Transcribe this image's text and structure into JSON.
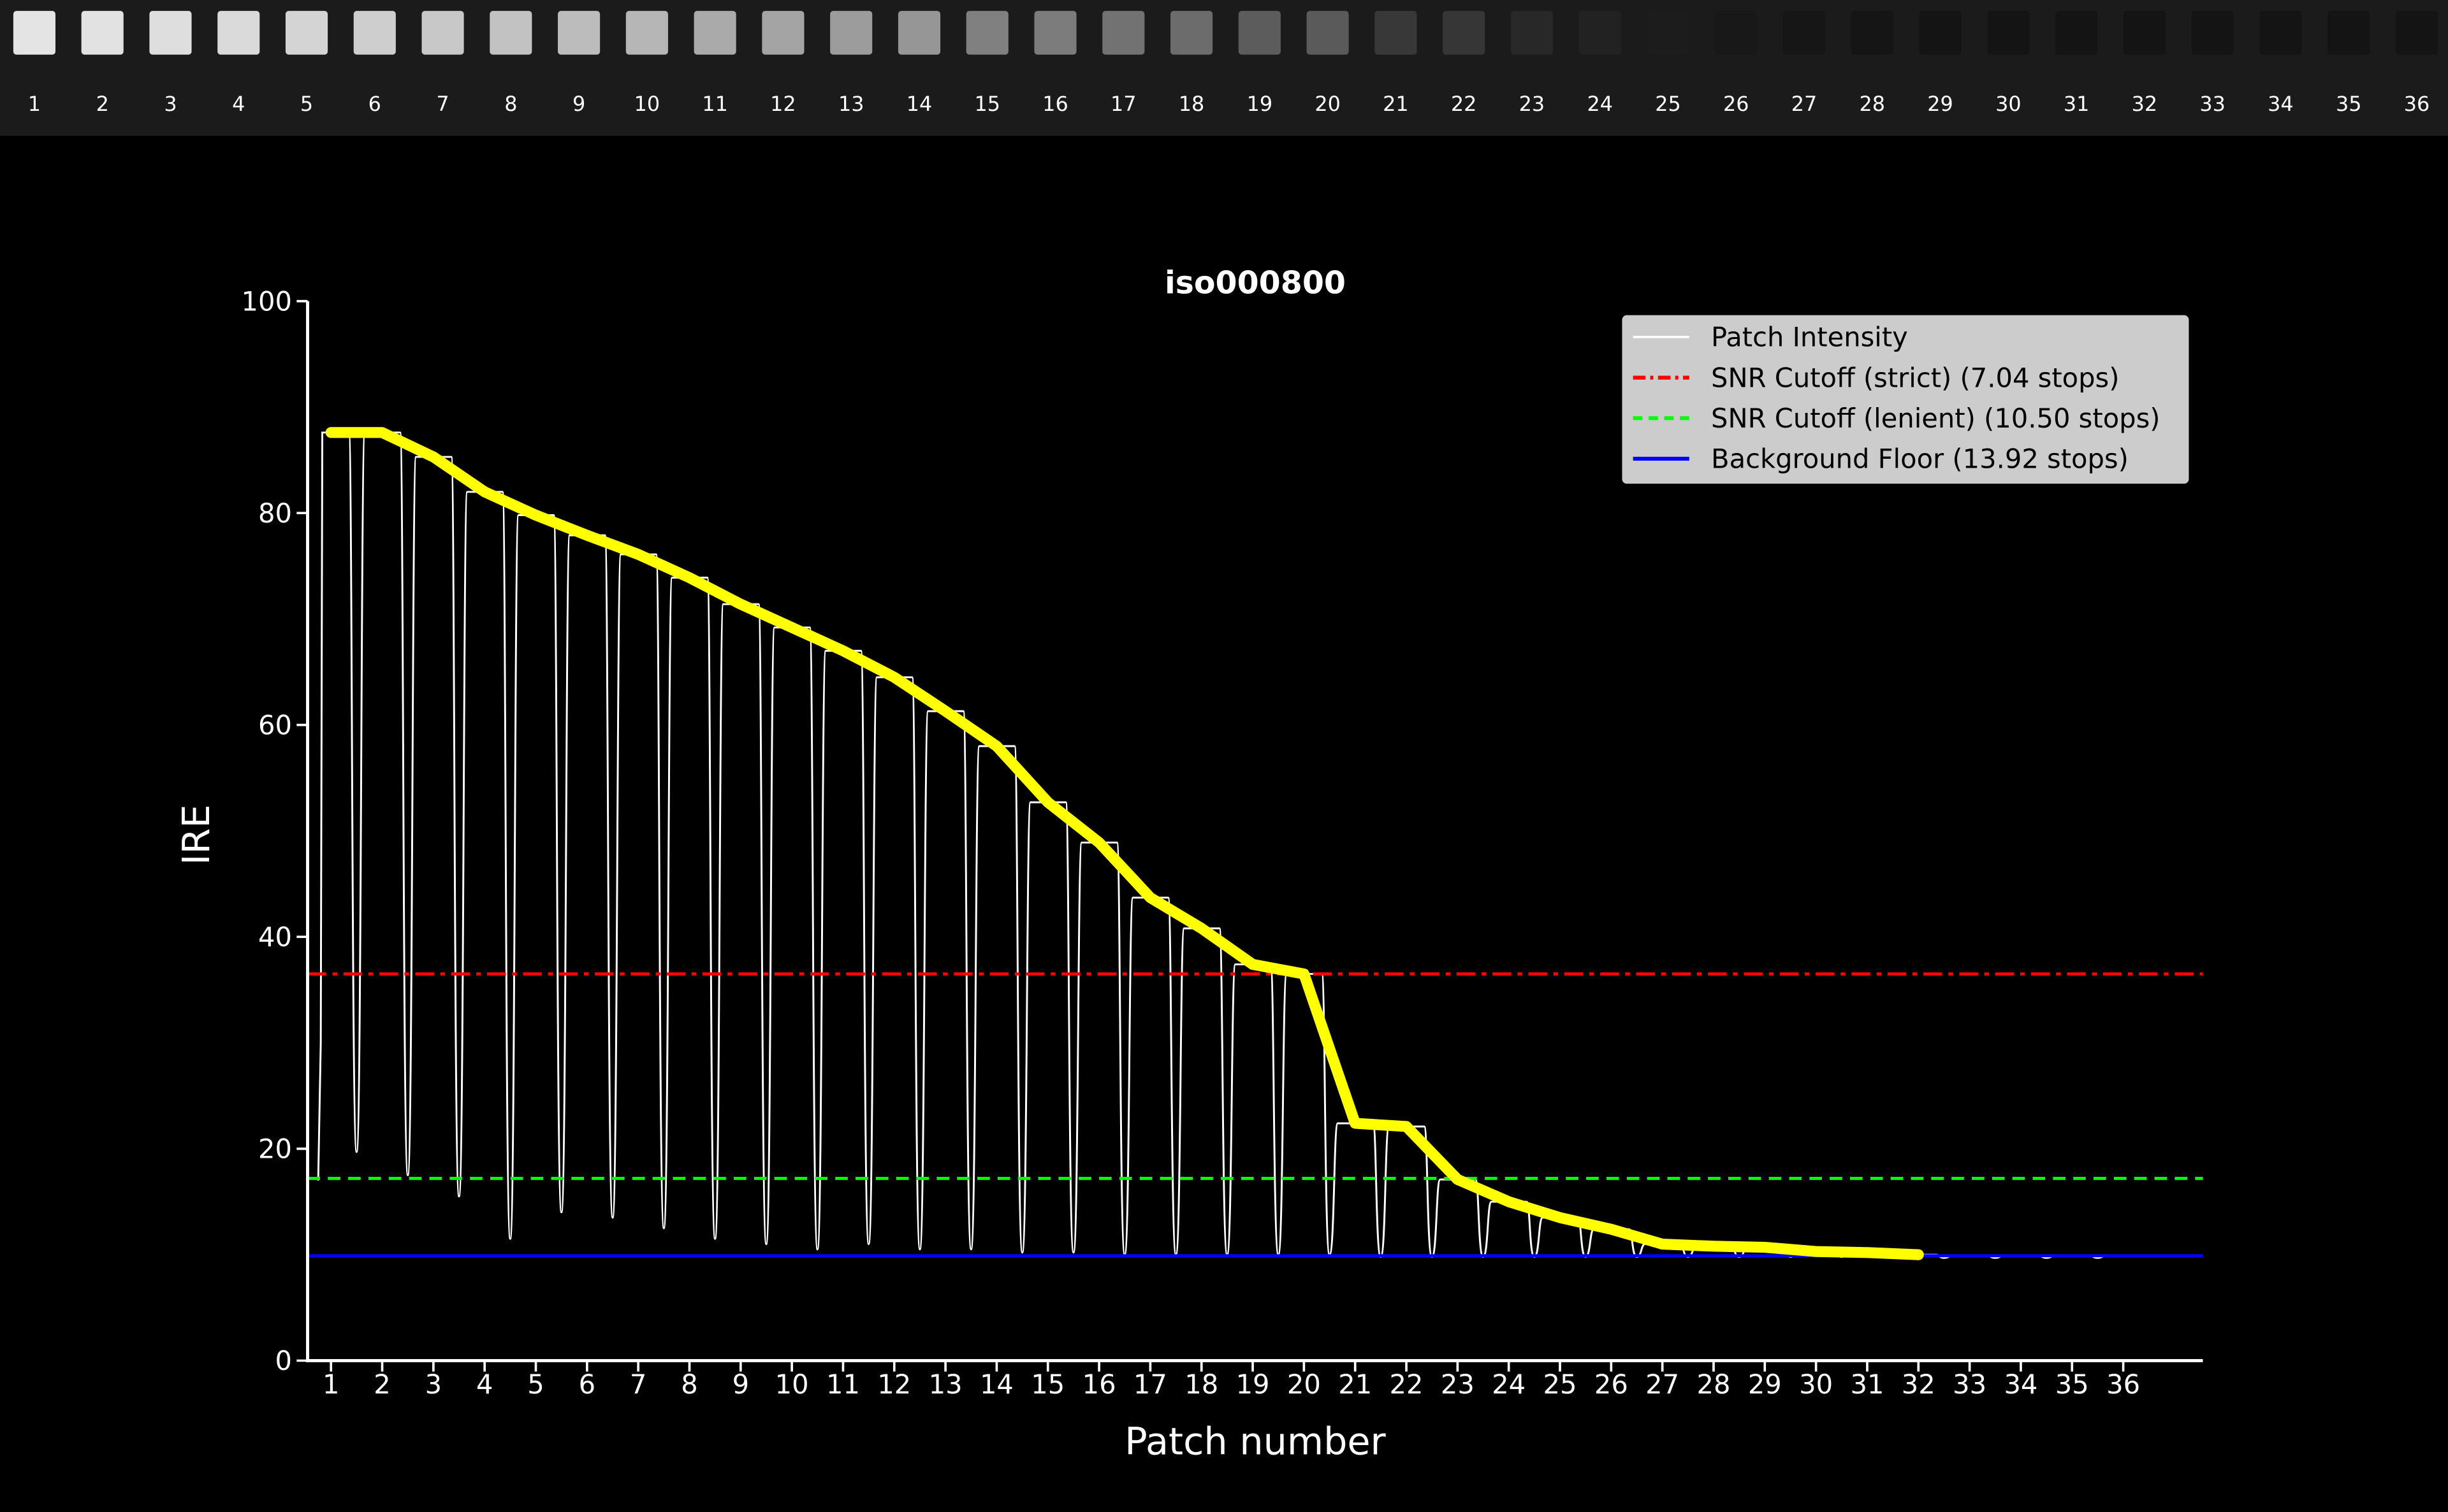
{
  "strip": {
    "labels": [
      "1",
      "2",
      "3",
      "4",
      "5",
      "6",
      "7",
      "8",
      "9",
      "10",
      "11",
      "12",
      "13",
      "14",
      "15",
      "16",
      "17",
      "18",
      "19",
      "20",
      "21",
      "22",
      "23",
      "24",
      "25",
      "26",
      "27",
      "28",
      "29",
      "30",
      "31",
      "32",
      "33",
      "34",
      "35",
      "36"
    ],
    "patch_gray_levels": [
      228,
      226,
      222,
      218,
      212,
      206,
      200,
      194,
      188,
      182,
      170,
      164,
      156,
      150,
      128,
      124,
      114,
      108,
      92,
      90,
      56,
      54,
      40,
      34,
      28,
      24,
      22,
      21,
      20,
      20,
      20,
      20,
      20,
      20,
      20,
      20
    ]
  },
  "chart_data": {
    "type": "line",
    "title": "iso000800",
    "xlabel": "Patch number",
    "ylabel": "IRE",
    "xlim": [
      0.55,
      36.45
    ],
    "ylim": [
      0,
      100
    ],
    "yticks": [
      0,
      20,
      40,
      60,
      80,
      100
    ],
    "xticks": [
      1,
      2,
      3,
      4,
      5,
      6,
      7,
      8,
      9,
      10,
      11,
      12,
      13,
      14,
      15,
      16,
      17,
      18,
      19,
      20,
      21,
      22,
      23,
      24,
      25,
      26,
      27,
      28,
      29,
      30,
      31,
      32,
      33,
      34,
      35,
      36
    ],
    "grid": false,
    "legend_placement": "top-right",
    "legend": [
      {
        "label": "Patch Intensity",
        "color": "#ffffff",
        "style": "solid"
      },
      {
        "label": "SNR Cutoff (strict) (7.04 stops)",
        "color": "#ff0000",
        "style": "dashdot"
      },
      {
        "label": "SNR Cutoff (lenient) (10.50 stops)",
        "color": "#00ff00",
        "style": "dashed"
      },
      {
        "label": "Background Floor (13.92 stops)",
        "color": "#0000ff",
        "style": "solid"
      }
    ],
    "patch_means": {
      "color": "#ffff00",
      "x": [
        1,
        2,
        3,
        4,
        5,
        6,
        7,
        8,
        9,
        10,
        11,
        12,
        13,
        14,
        15,
        16,
        17,
        18,
        19,
        20,
        21,
        22,
        23,
        24,
        25,
        26,
        27,
        28,
        29,
        30,
        31,
        32
      ],
      "y": [
        87.6,
        87.6,
        85.3,
        82.0,
        79.8,
        77.9,
        76.1,
        73.9,
        71.4,
        69.2,
        67.0,
        64.5,
        61.3,
        58.0,
        52.7,
        48.9,
        43.7,
        40.8,
        37.4,
        36.5,
        22.4,
        22.1,
        17.1,
        15.0,
        13.5,
        12.4,
        11.0,
        10.8,
        10.7,
        10.3,
        10.2,
        10.0
      ]
    },
    "patch_intensity_dips": [
      19.7,
      17.5,
      15.5,
      11.5,
      14.0,
      13.5,
      12.5,
      11.5,
      11.0,
      10.5,
      11.0,
      10.5,
      10.5,
      10.2,
      10.2,
      10.0,
      10.0,
      10.0,
      10.0,
      10.0,
      9.8,
      9.8,
      9.8,
      9.8,
      9.8,
      9.8,
      9.8,
      9.8,
      9.8,
      9.8,
      9.8
    ],
    "hlines": {
      "strict": 36.5,
      "lenient": 17.2,
      "floor": 9.9
    }
  }
}
